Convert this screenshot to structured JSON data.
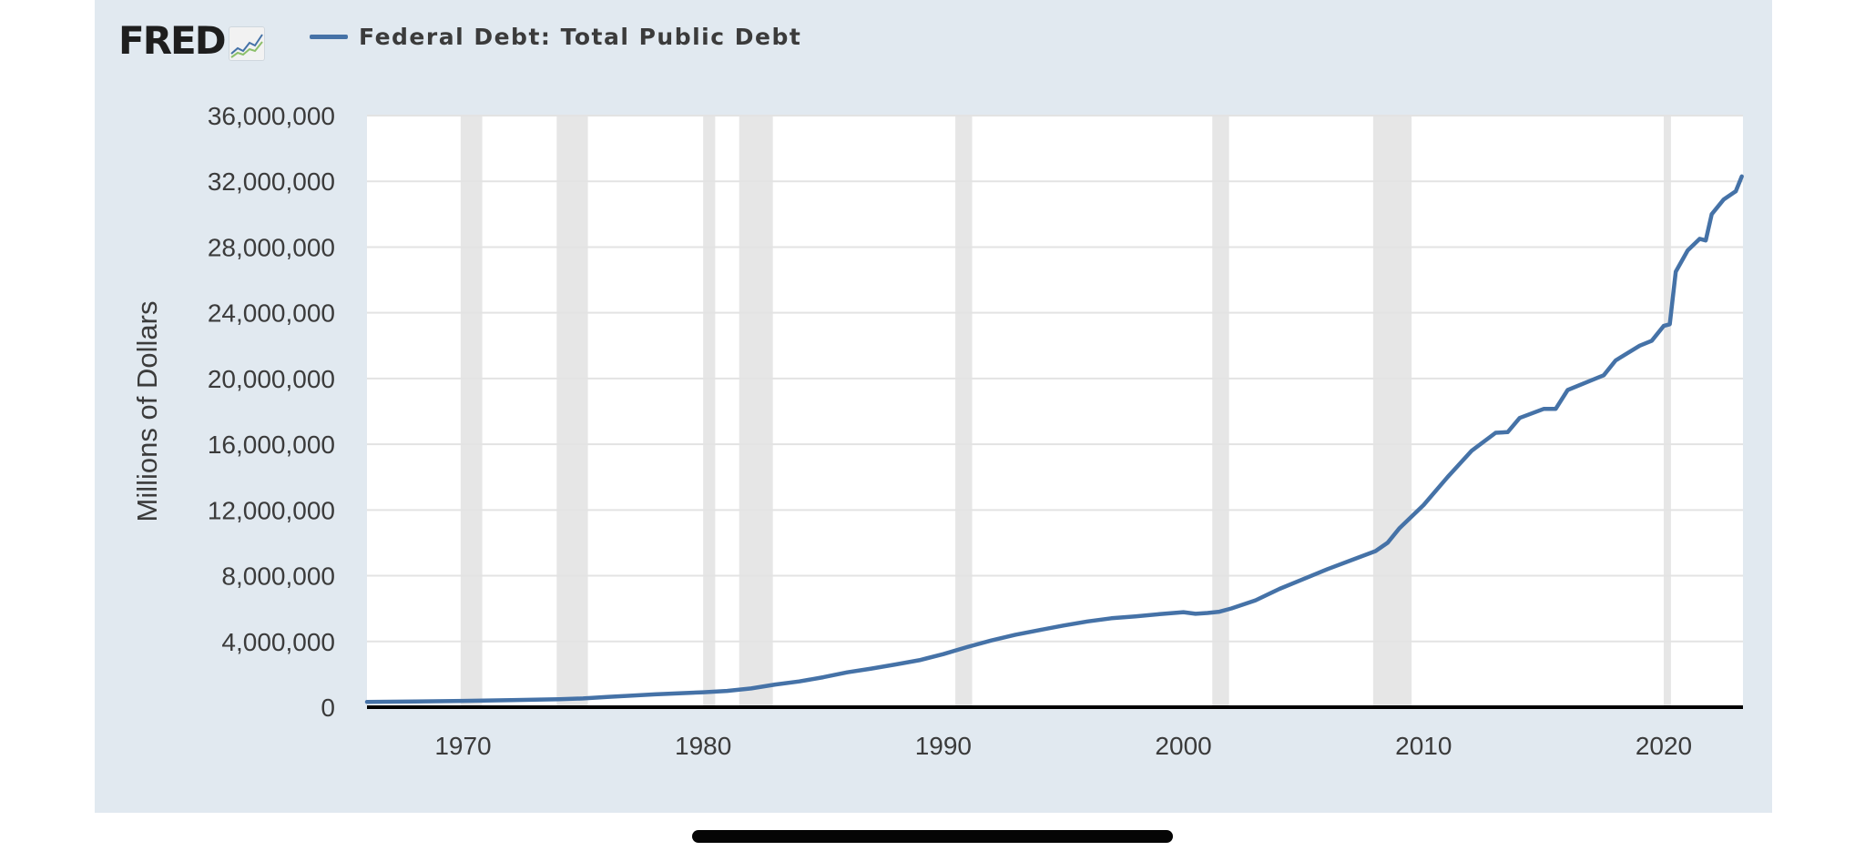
{
  "header": {
    "logo_text": "FRED",
    "logo_icon": "line-chart-icon"
  },
  "legend": {
    "label": "Federal Debt: Total Public Debt",
    "color": "#4572a7"
  },
  "chart_data": {
    "type": "line",
    "title": "",
    "xlabel": "",
    "ylabel": "Millions of Dollars",
    "xlim": [
      1966.0,
      2023.3
    ],
    "ylim": [
      0,
      36000000
    ],
    "xticks": [
      1970,
      1980,
      1990,
      2000,
      2010,
      2020
    ],
    "yticks": [
      0,
      4000000,
      8000000,
      12000000,
      16000000,
      20000000,
      24000000,
      28000000,
      32000000,
      36000000
    ],
    "ytick_labels": [
      "0",
      "4,000,000",
      "8,000,000",
      "12,000,000",
      "16,000,000",
      "20,000,000",
      "24,000,000",
      "28,000,000",
      "32,000,000",
      "36,000,000"
    ],
    "xtick_labels": [
      "1970",
      "1980",
      "1990",
      "2000",
      "2010",
      "2020"
    ],
    "grid": true,
    "legend_position": "top-left",
    "colors": {
      "line": "#4572a7",
      "recession": "#e6e6e6",
      "grid": "#e3e3e3",
      "plot_bg": "#ffffff",
      "baseline": "#000000",
      "panel_bg": "#e1e9f0"
    },
    "recessions": [
      [
        1969.9,
        1970.8
      ],
      [
        1973.9,
        1975.2
      ],
      [
        1980.0,
        1980.5
      ],
      [
        1981.5,
        1982.9
      ],
      [
        1990.5,
        1991.2
      ],
      [
        2001.2,
        2001.9
      ],
      [
        2007.9,
        2009.5
      ],
      [
        2020.0,
        2020.3
      ]
    ],
    "series": [
      {
        "name": "Federal Debt: Total Public Debt",
        "x": [
          1966.0,
          1968.0,
          1970.0,
          1972.0,
          1974.0,
          1975.0,
          1976.0,
          1978.0,
          1980.0,
          1981.0,
          1982.0,
          1983.0,
          1984.0,
          1985.0,
          1986.0,
          1987.0,
          1988.0,
          1989.0,
          1990.0,
          1991.0,
          1992.0,
          1993.0,
          1994.0,
          1995.0,
          1996.0,
          1997.0,
          1998.0,
          1999.0,
          2000.0,
          2000.5,
          2001.0,
          2001.5,
          2002.0,
          2003.0,
          2004.0,
          2005.0,
          2006.0,
          2007.0,
          2008.0,
          2008.5,
          2009.0,
          2010.0,
          2011.0,
          2012.0,
          2013.0,
          2013.5,
          2014.0,
          2015.0,
          2015.5,
          2016.0,
          2017.0,
          2017.5,
          2018.0,
          2019.0,
          2019.5,
          2020.0,
          2020.25,
          2020.5,
          2021.0,
          2021.5,
          2021.75,
          2022.0,
          2022.5,
          2023.0,
          2023.25
        ],
        "y": [
          320000,
          350000,
          380000,
          430000,
          480000,
          530000,
          620000,
          780000,
          910000,
          990000,
          1140000,
          1380000,
          1570000,
          1820000,
          2120000,
          2350000,
          2600000,
          2860000,
          3230000,
          3660000,
          4060000,
          4410000,
          4690000,
          4970000,
          5220000,
          5410000,
          5530000,
          5660000,
          5780000,
          5680000,
          5730000,
          5810000,
          6010000,
          6500000,
          7200000,
          7800000,
          8400000,
          8950000,
          9500000,
          10000000,
          10900000,
          12300000,
          14000000,
          15600000,
          16700000,
          16740000,
          17600000,
          18150000,
          18150000,
          19300000,
          19900000,
          20200000,
          21100000,
          22000000,
          22300000,
          23200000,
          23300000,
          26500000,
          27800000,
          28500000,
          28400000,
          30000000,
          30900000,
          31400000,
          32300000
        ]
      }
    ]
  }
}
